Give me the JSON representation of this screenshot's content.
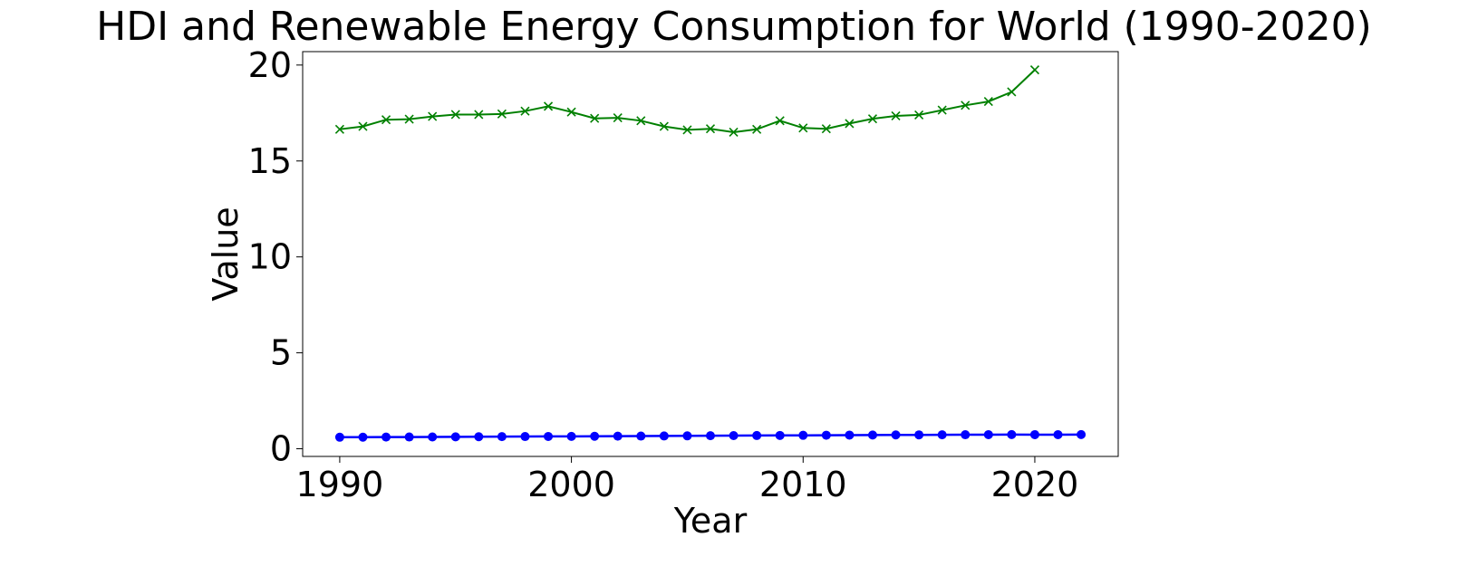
{
  "chart_data": {
    "type": "line",
    "title": "HDI and Renewable Energy Consumption for World (1990-2020)",
    "xlabel": "Year",
    "ylabel": "Value",
    "xlim": [
      1988.4,
      2023.6
    ],
    "ylim": [
      -0.4,
      20.7
    ],
    "xticks": [
      1990,
      2000,
      2010,
      2020
    ],
    "yticks": [
      0,
      5,
      10,
      15,
      20
    ],
    "grid": false,
    "legend": "none",
    "series": [
      {
        "color": "#008000",
        "marker": "x",
        "x": [
          1990,
          1991,
          1992,
          1993,
          1994,
          1995,
          1996,
          1997,
          1998,
          1999,
          2000,
          2001,
          2002,
          2003,
          2004,
          2005,
          2006,
          2007,
          2008,
          2009,
          2010,
          2011,
          2012,
          2013,
          2014,
          2015,
          2016,
          2017,
          2018,
          2019,
          2020
        ],
        "values": [
          16.65,
          16.8,
          17.15,
          17.18,
          17.32,
          17.42,
          17.42,
          17.45,
          17.6,
          17.85,
          17.55,
          17.22,
          17.25,
          17.1,
          16.8,
          16.62,
          16.68,
          16.5,
          16.65,
          17.1,
          16.72,
          16.68,
          16.95,
          17.2,
          17.35,
          17.4,
          17.65,
          17.9,
          18.1,
          18.6,
          19.75
        ]
      },
      {
        "color": "#0000ff",
        "marker": "o",
        "x": [
          1990,
          1991,
          1992,
          1993,
          1994,
          1995,
          1996,
          1997,
          1998,
          1999,
          2000,
          2001,
          2002,
          2003,
          2004,
          2005,
          2006,
          2007,
          2008,
          2009,
          2010,
          2011,
          2012,
          2013,
          2014,
          2015,
          2016,
          2017,
          2018,
          2019,
          2020,
          2021,
          2022
        ],
        "values": [
          0.601,
          0.604,
          0.608,
          0.612,
          0.616,
          0.621,
          0.627,
          0.632,
          0.637,
          0.641,
          0.645,
          0.65,
          0.655,
          0.66,
          0.666,
          0.672,
          0.679,
          0.685,
          0.69,
          0.694,
          0.701,
          0.706,
          0.711,
          0.716,
          0.72,
          0.724,
          0.728,
          0.731,
          0.735,
          0.739,
          0.735,
          0.735,
          0.739
        ]
      }
    ]
  }
}
